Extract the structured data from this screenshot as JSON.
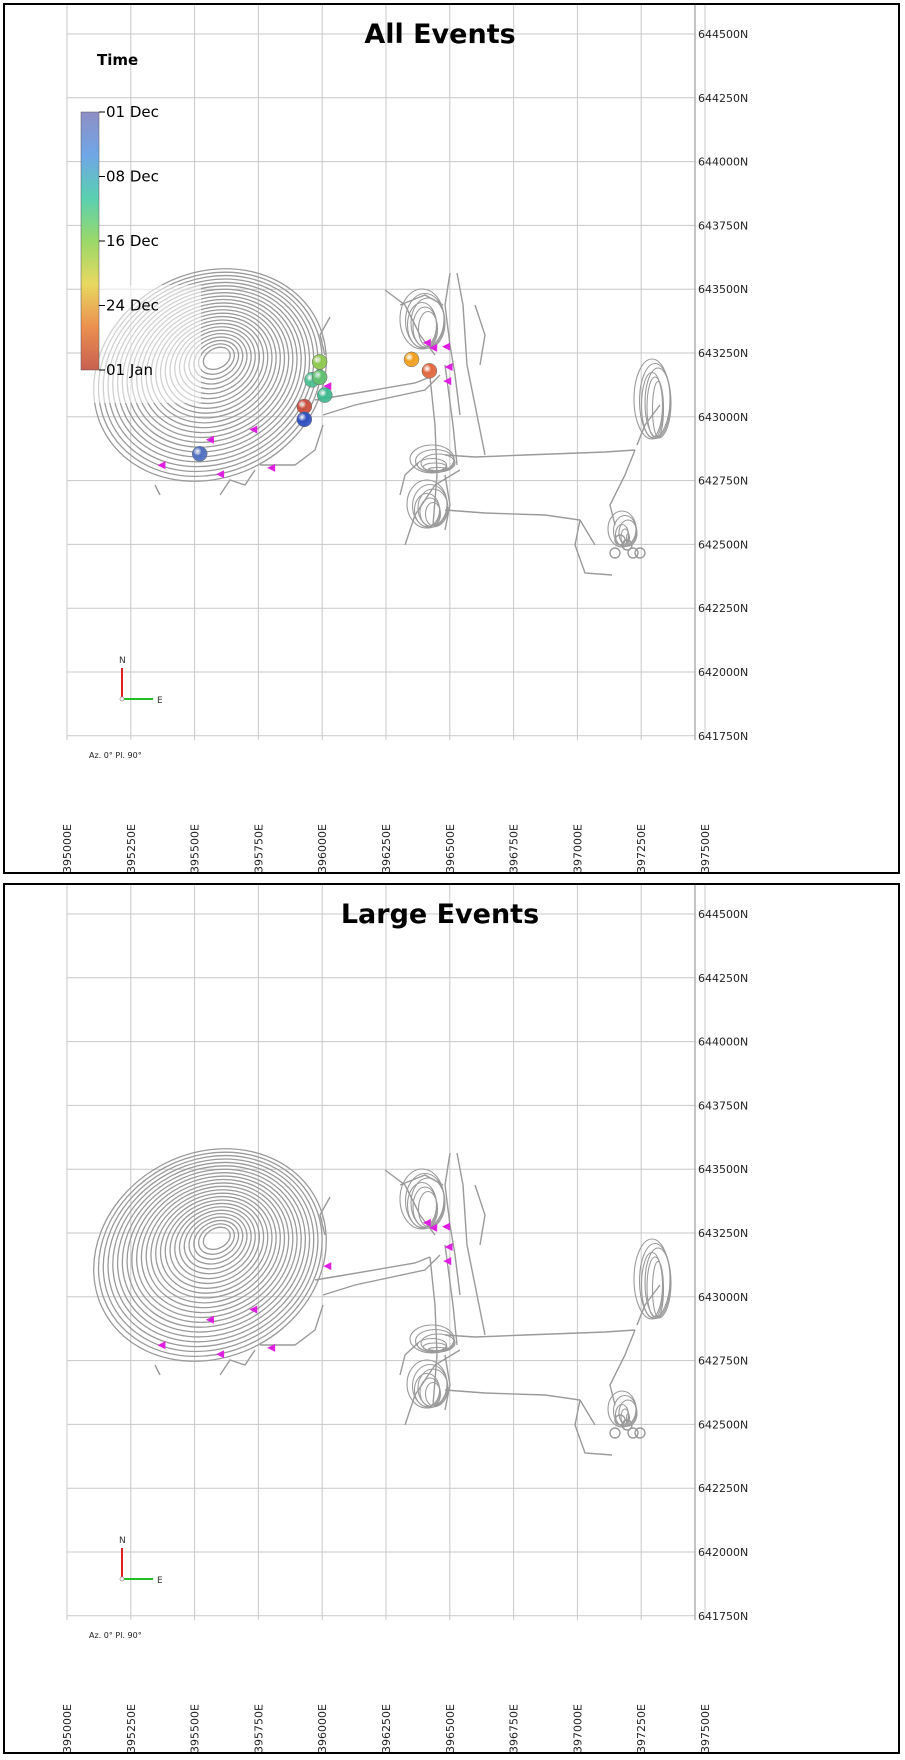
{
  "panels": [
    {
      "title": "All Events",
      "show_legend": true,
      "show_events": true
    },
    {
      "title": "Large Events",
      "show_legend": false,
      "show_events": false
    }
  ],
  "grid": {
    "northing_labels": [
      "644500N",
      "644250N",
      "644000N",
      "643750N",
      "643500N",
      "643250N",
      "643000N",
      "642750N",
      "642500N",
      "642250N",
      "642000N",
      "641750N"
    ],
    "easting_labels": [
      "395000E",
      "395250E",
      "395500E",
      "395750E",
      "396000E",
      "396250E",
      "396500E",
      "396750E",
      "397000E",
      "397250E",
      "397500E"
    ]
  },
  "legend": {
    "title": "Time",
    "ticks": [
      "01 Dec",
      "08 Dec",
      "16 Dec",
      "24 Dec",
      "01 Jan"
    ],
    "colors": [
      "#8e8ec4",
      "#6fa6e6",
      "#5ad0b0",
      "#9ad86a",
      "#e8d860",
      "#ec9050",
      "#c86050"
    ]
  },
  "north_arrow": {
    "n_label": "N",
    "e_label": "E",
    "orientation": "Az. 0° Pl. 90°",
    "n_color": "#e02020",
    "e_color": "#20c020"
  },
  "events": [
    {
      "easting": 395990,
      "northing": 643215,
      "color": "#8ec850"
    },
    {
      "easting": 395960,
      "northing": 643145,
      "color": "#4cc090"
    },
    {
      "easting": 395990,
      "northing": 643155,
      "color": "#60c070"
    },
    {
      "easting": 396010,
      "northing": 643085,
      "color": "#40b890"
    },
    {
      "easting": 395930,
      "northing": 643040,
      "color": "#c85040"
    },
    {
      "easting": 395930,
      "northing": 642990,
      "color": "#3050c0"
    },
    {
      "easting": 395520,
      "northing": 642855,
      "color": "#5070c0"
    },
    {
      "easting": 396350,
      "northing": 643225,
      "color": "#f0a020"
    },
    {
      "easting": 396420,
      "northing": 643180,
      "color": "#e06840"
    }
  ],
  "stations": [
    {
      "easting": 396410,
      "northing": 643290
    },
    {
      "easting": 396435,
      "northing": 643270
    },
    {
      "easting": 396485,
      "northing": 643275
    },
    {
      "easting": 396495,
      "northing": 643195
    },
    {
      "easting": 396490,
      "northing": 643140
    },
    {
      "easting": 396020,
      "northing": 643120
    },
    {
      "easting": 395370,
      "northing": 642810
    },
    {
      "easting": 395800,
      "northing": 642800
    },
    {
      "easting": 395600,
      "northing": 642775
    },
    {
      "easting": 395560,
      "northing": 642910
    },
    {
      "easting": 395730,
      "northing": 642950
    }
  ],
  "style": {
    "grid_color": "#c8c8c8",
    "mine_color": "#9a9a9a",
    "station_color": "#e020e0"
  }
}
